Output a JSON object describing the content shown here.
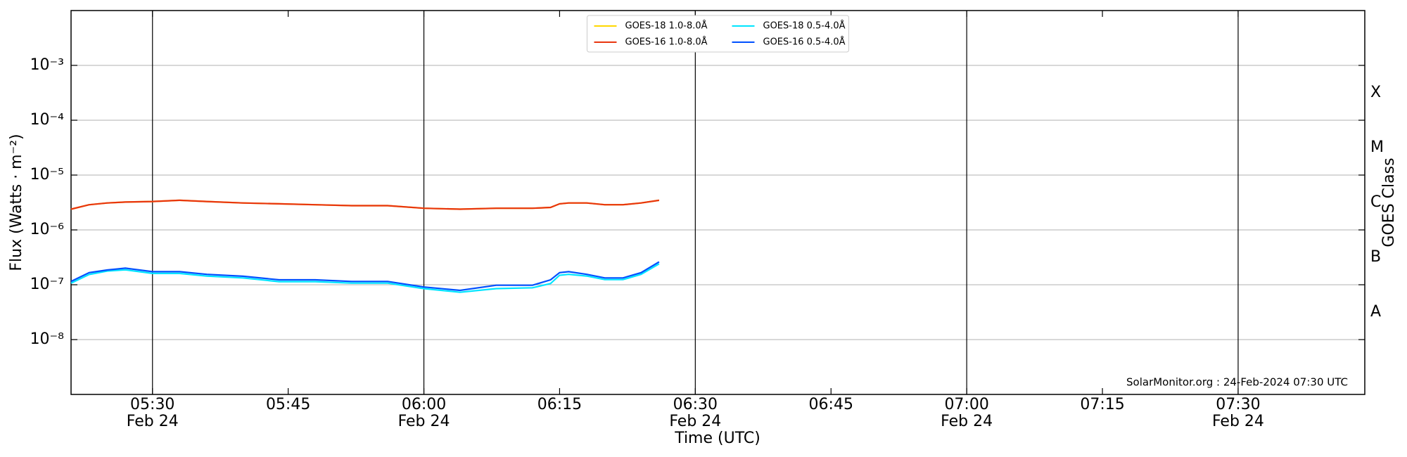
{
  "chart_data": {
    "type": "line",
    "ylabel": "Flux (Watts · m⁻²)",
    "xlabel": "Time (UTC)",
    "y2label": "GOES Class",
    "annotation": "SolarMonitor.org : 24-Feb-2024 07:30 UTC",
    "log_y": true,
    "grid": true,
    "legend": "upper center",
    "ylim": [
      1e-09,
      0.01
    ],
    "yticks": [
      {
        "value": 1e-08,
        "label": "10⁻⁸"
      },
      {
        "value": 1e-07,
        "label": "10⁻⁷"
      },
      {
        "value": 1e-06,
        "label": "10⁻⁶"
      },
      {
        "value": 1e-05,
        "label": "10⁻⁵"
      },
      {
        "value": 0.0001,
        "label": "10⁻⁴"
      },
      {
        "value": 0.001,
        "label": "10⁻³"
      }
    ],
    "y2lim": [
      1e-09,
      0.01
    ],
    "y2ticks": [
      {
        "value": 3.16e-08,
        "label": "A"
      },
      {
        "value": 3.16e-07,
        "label": "B"
      },
      {
        "value": 3.16e-06,
        "label": "C"
      },
      {
        "value": 3.16e-05,
        "label": "M"
      },
      {
        "value": 0.000316,
        "label": "X"
      }
    ],
    "xlim": [
      "05:21",
      "07:44"
    ],
    "xticks": [
      {
        "value": "05:30",
        "label": "05:30",
        "date": "Feb 24"
      },
      {
        "value": "05:45",
        "label": "05:45"
      },
      {
        "value": "06:00",
        "label": "06:00",
        "date": "Feb 24"
      },
      {
        "value": "06:15",
        "label": "06:15"
      },
      {
        "value": "06:30",
        "label": "06:30",
        "date": "Feb 24"
      },
      {
        "value": "06:45",
        "label": "06:45"
      },
      {
        "value": "07:00",
        "label": "07:00",
        "date": "Feb 24"
      },
      {
        "value": "07:15",
        "label": "07:15"
      },
      {
        "value": "07:30",
        "label": "07:30",
        "date": "Feb 24"
      }
    ],
    "x": [
      "05:21",
      "05:23",
      "05:25",
      "05:27",
      "05:30",
      "05:33",
      "05:36",
      "05:40",
      "05:44",
      "05:48",
      "05:52",
      "05:56",
      "06:00",
      "06:04",
      "06:08",
      "06:12",
      "06:14",
      "06:15",
      "06:16",
      "06:18",
      "06:20",
      "06:22",
      "06:24",
      "06:26"
    ],
    "series": [
      {
        "name": "GOES-18 1.0-8.0Å",
        "color": "#ffd700",
        "values": [
          2.39e-06,
          2.88e-06,
          3.1e-06,
          3.22e-06,
          3.3e-06,
          3.47e-06,
          3.3e-06,
          3.1e-06,
          2.99e-06,
          2.88e-06,
          2.77e-06,
          2.77e-06,
          2.48e-06,
          2.39e-06,
          2.48e-06,
          2.48e-06,
          2.57e-06,
          2.99e-06,
          3.1e-06,
          3.1e-06,
          2.88e-06,
          2.88e-06,
          3.1e-06,
          3.47e-06
        ]
      },
      {
        "name": "GOES-16 1.0-8.0Å",
        "color": "#e8350f",
        "values": [
          2.39e-06,
          2.88e-06,
          3.1e-06,
          3.22e-06,
          3.3e-06,
          3.47e-06,
          3.3e-06,
          3.1e-06,
          2.99e-06,
          2.88e-06,
          2.77e-06,
          2.77e-06,
          2.48e-06,
          2.39e-06,
          2.48e-06,
          2.48e-06,
          2.57e-06,
          2.99e-06,
          3.1e-06,
          3.1e-06,
          2.88e-06,
          2.88e-06,
          3.1e-06,
          3.47e-06
        ]
      },
      {
        "name": "GOES-18 0.5-4.0Å",
        "color": "#00e5ff",
        "values": [
          1.07e-07,
          1.54e-07,
          1.78e-07,
          1.87e-07,
          1.61e-07,
          1.61e-07,
          1.44e-07,
          1.33e-07,
          1.14e-07,
          1.14e-07,
          1.07e-07,
          1.07e-07,
          8.5e-08,
          7.3e-08,
          8.5e-08,
          8.8e-08,
          1.05e-07,
          1.49e-07,
          1.55e-07,
          1.44e-07,
          1.24e-07,
          1.24e-07,
          1.55e-07,
          2.4e-07
        ]
      },
      {
        "name": "GOES-16 0.5-4.0Å",
        "color": "#0050ff",
        "values": [
          1.15e-07,
          1.66e-07,
          1.86e-07,
          2.01e-07,
          1.73e-07,
          1.73e-07,
          1.55e-07,
          1.43e-07,
          1.23e-07,
          1.23e-07,
          1.15e-07,
          1.15e-07,
          9.1e-08,
          7.9e-08,
          9.8e-08,
          9.8e-08,
          1.23e-07,
          1.66e-07,
          1.73e-07,
          1.55e-07,
          1.33e-07,
          1.33e-07,
          1.66e-07,
          2.61e-07
        ]
      }
    ]
  }
}
